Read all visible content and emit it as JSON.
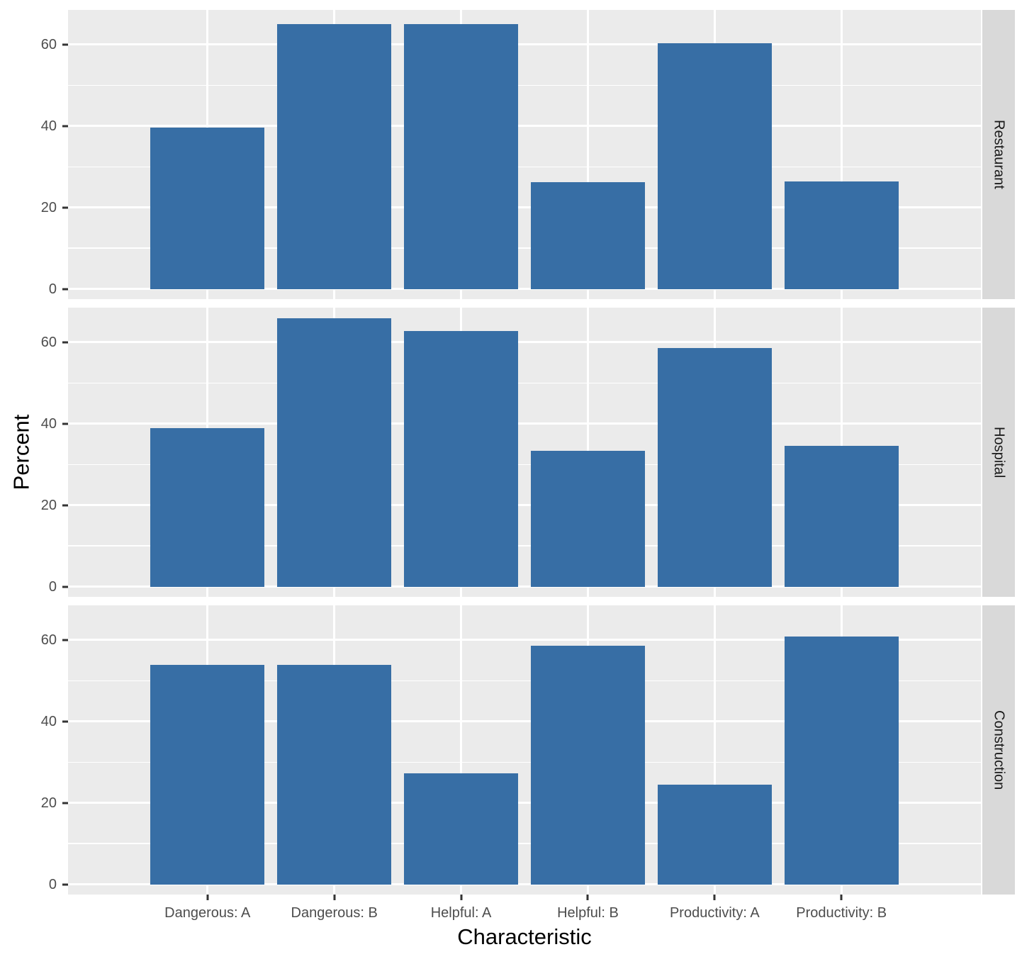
{
  "colors": {
    "bar_fill": "#376EA5",
    "panel_background": "#EBEBEB",
    "strip_background": "#D9D9D9",
    "gridline": "#FFFFFF",
    "tick_label": "#4D4D4D",
    "tick_mark": "#333333",
    "axis_title": "#000000",
    "strip_text": "#1A1A1A"
  },
  "chart_data": {
    "type": "bar",
    "title": "",
    "xlabel": "Characteristic",
    "ylabel": "Percent",
    "categories": [
      "Dangerous: A",
      "Dangerous: B",
      "Helpful: A",
      "Helpful: B",
      "Productivity: A",
      "Productivity: B"
    ],
    "facets": [
      {
        "name": "Restaurant",
        "values": [
          39.6,
          65.0,
          65.0,
          26.3,
          60.4,
          26.4
        ]
      },
      {
        "name": "Hospital",
        "values": [
          39.0,
          65.9,
          62.8,
          33.4,
          58.5,
          34.6
        ]
      },
      {
        "name": "Construction",
        "values": [
          53.9,
          53.9,
          27.2,
          58.6,
          24.4,
          60.9
        ]
      }
    ],
    "y_ticks": [
      0,
      20,
      40,
      60
    ],
    "y_minor_gridlines": [
      10,
      30,
      50
    ],
    "ylim": [
      -2.5,
      68.5
    ],
    "bar_width_fraction": 0.9,
    "category_edge_padding": 0.6,
    "grid": true,
    "legend_position": "none",
    "facet_strip_side": "right"
  }
}
